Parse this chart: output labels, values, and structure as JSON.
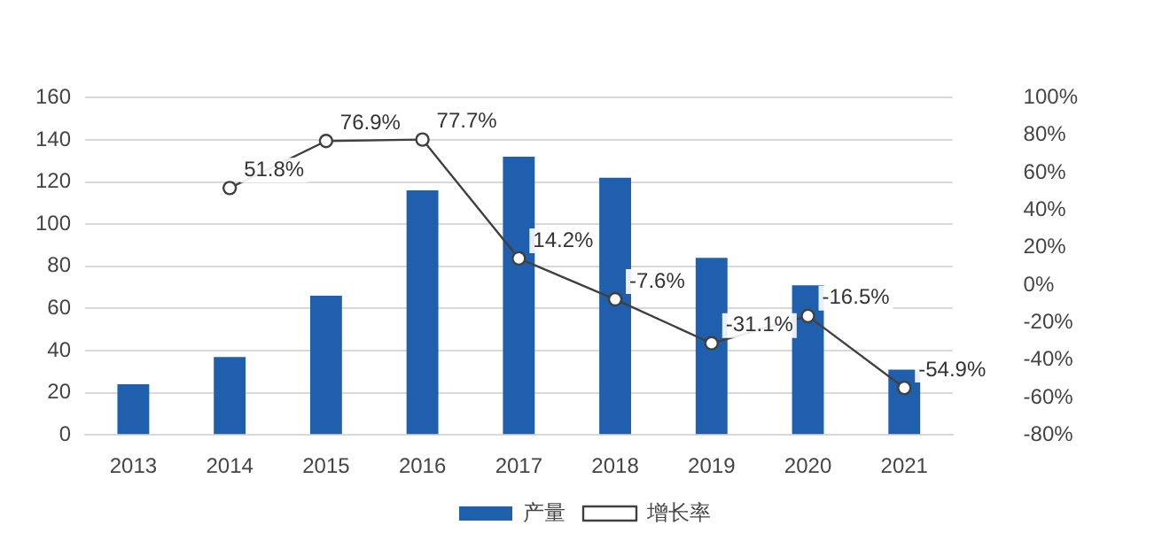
{
  "chart_data": {
    "type": "bar",
    "categories": [
      "2013",
      "2014",
      "2015",
      "2016",
      "2017",
      "2018",
      "2019",
      "2020",
      "2021"
    ],
    "series": [
      {
        "name": "产量",
        "color": "#1f5fad",
        "values": [
          24,
          37,
          66,
          116,
          132,
          122,
          84,
          71,
          31
        ]
      },
      {
        "name": "增长率",
        "type": "line",
        "axis": "y2",
        "color": "#404040",
        "marker": "circle",
        "values": [
          null,
          51.8,
          76.9,
          77.7,
          14.2,
          -7.6,
          -31.1,
          -16.5,
          -54.9
        ],
        "value_labels": [
          null,
          "51.8%",
          "76.9%",
          "77.7%",
          "14.2%",
          "-7.6%",
          "-31.1%",
          "-16.5%",
          "-54.9%"
        ]
      }
    ],
    "ylim": [
      0,
      160
    ],
    "yticks": [
      0,
      20,
      40,
      60,
      80,
      100,
      120,
      140,
      160
    ],
    "y2lim": [
      -80,
      100
    ],
    "y2ticks": [
      {
        "value": -80,
        "label": "-80%"
      },
      {
        "value": -60,
        "label": "-60%"
      },
      {
        "value": -40,
        "label": "-40%"
      },
      {
        "value": -20,
        "label": "-20%"
      },
      {
        "value": 0,
        "label": "0%"
      },
      {
        "value": 20,
        "label": "20%"
      },
      {
        "value": 40,
        "label": "40%"
      },
      {
        "value": 60,
        "label": "60%"
      },
      {
        "value": 80,
        "label": "80%"
      },
      {
        "value": 100,
        "label": "100%"
      }
    ],
    "grid": "y",
    "legend": "bottom"
  }
}
